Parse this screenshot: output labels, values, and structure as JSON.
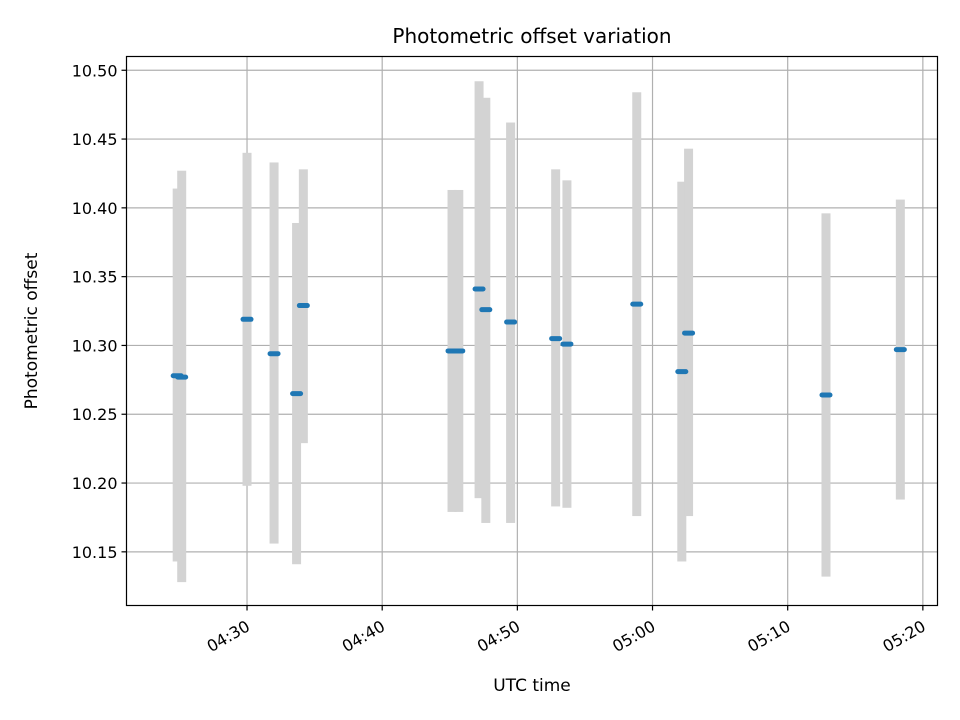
{
  "chart_data": {
    "type": "scatter",
    "title": "Photometric offset variation",
    "xlabel": "UTC time",
    "ylabel": "Photometric offset",
    "xlim": [
      "04:21:05",
      "05:21:05"
    ],
    "ylim": [
      10.111,
      10.51
    ],
    "grid": true,
    "x_ticks": [
      "04:30",
      "04:40",
      "04:50",
      "05:00",
      "05:10",
      "05:20"
    ],
    "y_ticks": [
      10.15,
      10.2,
      10.25,
      10.3,
      10.35,
      10.4,
      10.45,
      10.5
    ],
    "y_tick_labels": [
      "10.15",
      "10.20",
      "10.25",
      "10.30",
      "10.35",
      "10.40",
      "10.45",
      "10.50"
    ],
    "colors": {
      "point": "#1f77b4",
      "errorbar": "#d3d3d3",
      "grid": "#b0b0b0"
    },
    "series": [
      {
        "points": [
          {
            "x": "04:24:50",
            "y": 10.278,
            "ylo": 10.143,
            "yhi": 10.414
          },
          {
            "x": "04:25:10",
            "y": 10.277,
            "ylo": 10.128,
            "yhi": 10.427
          },
          {
            "x": "04:30:00",
            "y": 10.319,
            "ylo": 10.198,
            "yhi": 10.44
          },
          {
            "x": "04:32:00",
            "y": 10.294,
            "ylo": 10.156,
            "yhi": 10.433
          },
          {
            "x": "04:33:40",
            "y": 10.265,
            "ylo": 10.141,
            "yhi": 10.389
          },
          {
            "x": "04:34:10",
            "y": 10.329,
            "ylo": 10.229,
            "yhi": 10.428
          },
          {
            "x": "04:45:10",
            "y": 10.296,
            "ylo": 10.179,
            "yhi": 10.413
          },
          {
            "x": "04:45:40",
            "y": 10.296,
            "ylo": 10.179,
            "yhi": 10.413
          },
          {
            "x": "04:47:10",
            "y": 10.341,
            "ylo": 10.189,
            "yhi": 10.492
          },
          {
            "x": "04:47:40",
            "y": 10.326,
            "ylo": 10.171,
            "yhi": 10.48
          },
          {
            "x": "04:49:30",
            "y": 10.317,
            "ylo": 10.171,
            "yhi": 10.462
          },
          {
            "x": "04:52:50",
            "y": 10.305,
            "ylo": 10.183,
            "yhi": 10.428
          },
          {
            "x": "04:53:40",
            "y": 10.301,
            "ylo": 10.182,
            "yhi": 10.42
          },
          {
            "x": "04:58:50",
            "y": 10.33,
            "ylo": 10.176,
            "yhi": 10.484
          },
          {
            "x": "05:02:10",
            "y": 10.281,
            "ylo": 10.143,
            "yhi": 10.419
          },
          {
            "x": "05:02:40",
            "y": 10.309,
            "ylo": 10.176,
            "yhi": 10.443
          },
          {
            "x": "05:12:50",
            "y": 10.264,
            "ylo": 10.132,
            "yhi": 10.396
          },
          {
            "x": "05:18:20",
            "y": 10.297,
            "ylo": 10.188,
            "yhi": 10.406
          }
        ]
      }
    ]
  }
}
